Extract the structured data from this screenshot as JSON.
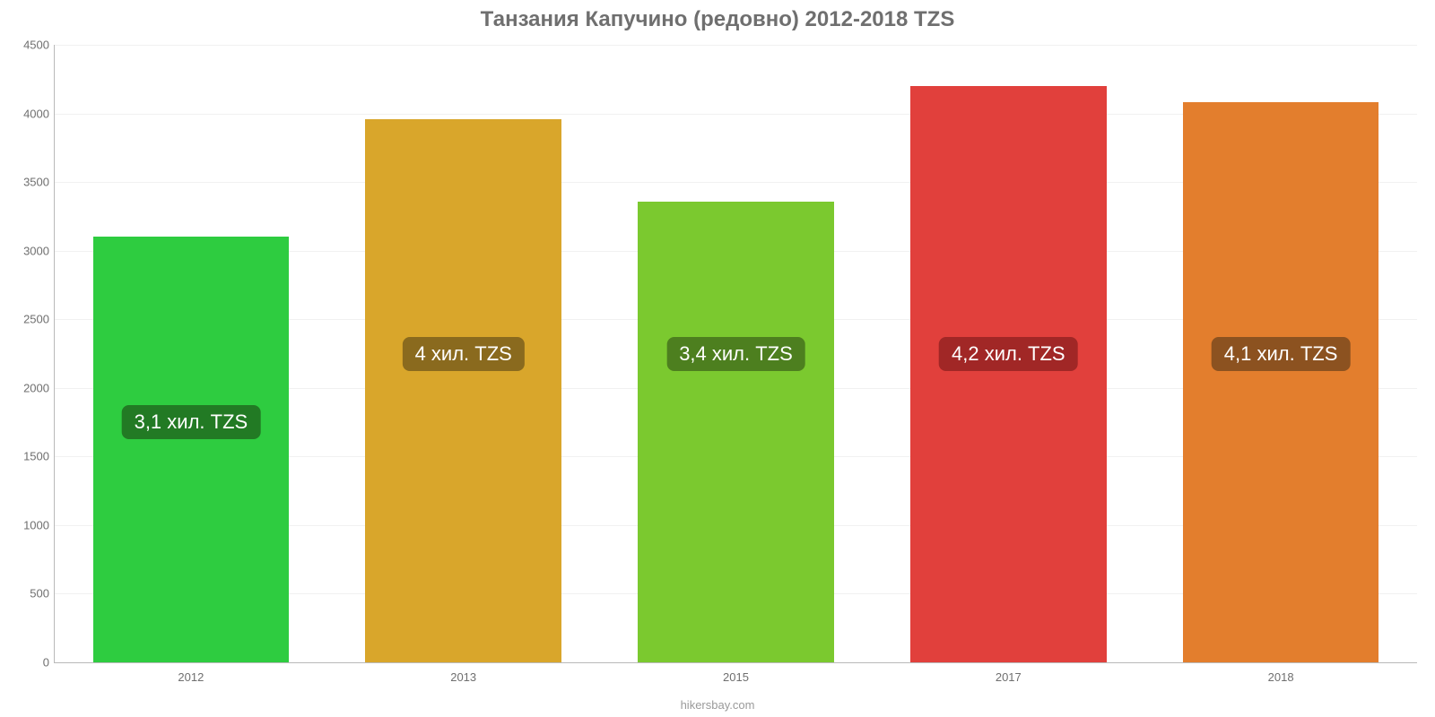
{
  "chart": {
    "type": "bar",
    "title": "Танзания Капучино (редовно) 2012-2018 TZS",
    "title_fontsize": 24,
    "title_color": "#6f6f6f",
    "source": "hikersbay.com",
    "background_color": "#ffffff",
    "grid_color": "#f1f1f1",
    "axis_color": "#b9b9b9",
    "tick_color": "#6f6f6f",
    "tick_fontsize": 13,
    "ylim": [
      0,
      4500
    ],
    "ytick_step": 500,
    "yticks": [
      "0",
      "500",
      "1000",
      "1500",
      "2000",
      "2500",
      "3000",
      "3500",
      "4000",
      "4500"
    ],
    "categories": [
      "2012",
      "2013",
      "2015",
      "2017",
      "2018"
    ],
    "values": [
      3100,
      3960,
      3360,
      4200,
      4080
    ],
    "bar_colors": [
      "#2ecc40",
      "#d9a62b",
      "#7bc92f",
      "#e1403c",
      "#e37e2d"
    ],
    "bar_labels": [
      "3,1 хил. TZS",
      "4 хил. TZS",
      "3,4 хил. TZS",
      "4,2 хил. TZS",
      "4,1 хил. TZS"
    ],
    "bar_label_bg": [
      "#227a24",
      "#8a6a1e",
      "#4d7f1f",
      "#a12726",
      "#8c5220"
    ],
    "bar_label_color": "#ffffff",
    "bar_label_fontsize": 22,
    "bar_width_ratio": 0.72,
    "label_y_value": 2250,
    "label_y_value_first": 1750
  }
}
